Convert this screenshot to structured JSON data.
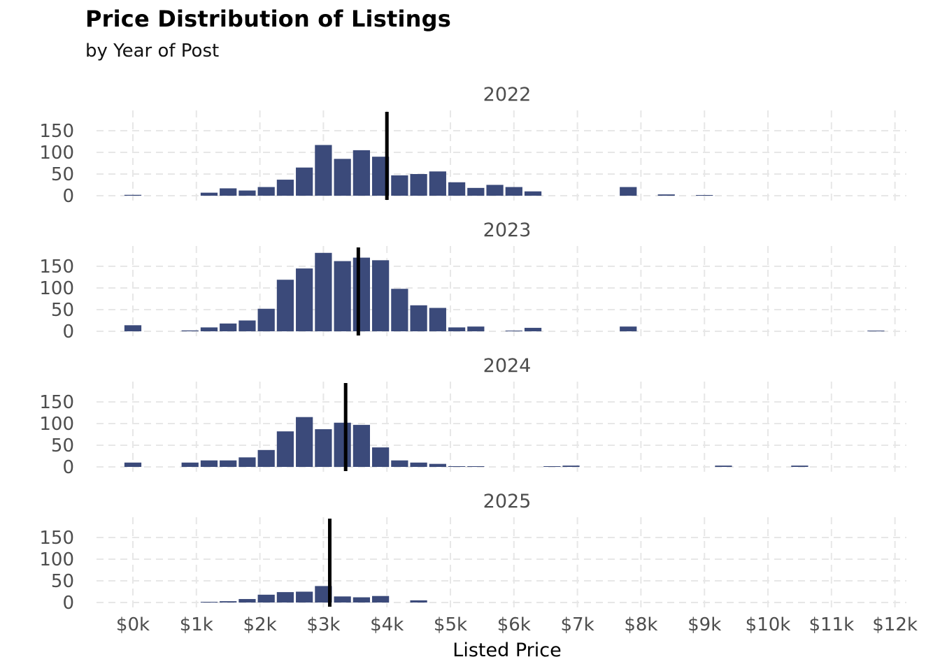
{
  "chart_data": {
    "type": "bar",
    "title": "Price Distribution of Listings",
    "subtitle": "by Year of Post",
    "xlabel": "Listed Price",
    "ylabel": "",
    "x_ticks": [
      "$0k",
      "$1k",
      "$2k",
      "$3k",
      "$4k",
      "$5k",
      "$6k",
      "$7k",
      "$8k",
      "$9k",
      "$10k",
      "$11k",
      "$12k"
    ],
    "y_ticks": [
      "0",
      "50",
      "100",
      "150"
    ],
    "grid": true,
    "facets": [
      {
        "label": "2022",
        "median_line": 4000,
        "bins": [
          {
            "x": 0,
            "count": 2
          },
          {
            "x": 1200,
            "count": 7
          },
          {
            "x": 1500,
            "count": 17
          },
          {
            "x": 1800,
            "count": 12
          },
          {
            "x": 2100,
            "count": 20
          },
          {
            "x": 2400,
            "count": 37
          },
          {
            "x": 2700,
            "count": 65
          },
          {
            "x": 3000,
            "count": 117
          },
          {
            "x": 3300,
            "count": 85
          },
          {
            "x": 3600,
            "count": 105
          },
          {
            "x": 3900,
            "count": 90
          },
          {
            "x": 4200,
            "count": 47
          },
          {
            "x": 4500,
            "count": 50
          },
          {
            "x": 4800,
            "count": 56
          },
          {
            "x": 5100,
            "count": 31
          },
          {
            "x": 5400,
            "count": 18
          },
          {
            "x": 5700,
            "count": 25
          },
          {
            "x": 6000,
            "count": 20
          },
          {
            "x": 6300,
            "count": 10
          },
          {
            "x": 7800,
            "count": 20
          },
          {
            "x": 8400,
            "count": 3
          },
          {
            "x": 9000,
            "count": 1
          }
        ]
      },
      {
        "label": "2023",
        "median_line": 3550,
        "bins": [
          {
            "x": 0,
            "count": 14
          },
          {
            "x": 900,
            "count": 2
          },
          {
            "x": 1200,
            "count": 9
          },
          {
            "x": 1500,
            "count": 18
          },
          {
            "x": 1800,
            "count": 25
          },
          {
            "x": 2100,
            "count": 52
          },
          {
            "x": 2400,
            "count": 119
          },
          {
            "x": 2700,
            "count": 145
          },
          {
            "x": 3000,
            "count": 181
          },
          {
            "x": 3300,
            "count": 162
          },
          {
            "x": 3600,
            "count": 170
          },
          {
            "x": 3900,
            "count": 164
          },
          {
            "x": 4200,
            "count": 98
          },
          {
            "x": 4500,
            "count": 60
          },
          {
            "x": 4800,
            "count": 54
          },
          {
            "x": 5100,
            "count": 9
          },
          {
            "x": 5400,
            "count": 11
          },
          {
            "x": 6000,
            "count": 1
          },
          {
            "x": 6300,
            "count": 8
          },
          {
            "x": 7800,
            "count": 11
          },
          {
            "x": 11700,
            "count": 1
          }
        ]
      },
      {
        "label": "2024",
        "median_line": 3350,
        "bins": [
          {
            "x": 0,
            "count": 10
          },
          {
            "x": 900,
            "count": 10
          },
          {
            "x": 1200,
            "count": 15
          },
          {
            "x": 1500,
            "count": 15
          },
          {
            "x": 1800,
            "count": 22
          },
          {
            "x": 2100,
            "count": 39
          },
          {
            "x": 2400,
            "count": 82
          },
          {
            "x": 2700,
            "count": 115
          },
          {
            "x": 3000,
            "count": 87
          },
          {
            "x": 3300,
            "count": 102
          },
          {
            "x": 3600,
            "count": 97
          },
          {
            "x": 3900,
            "count": 45
          },
          {
            "x": 4200,
            "count": 15
          },
          {
            "x": 4500,
            "count": 10
          },
          {
            "x": 4800,
            "count": 7
          },
          {
            "x": 5100,
            "count": 1
          },
          {
            "x": 5400,
            "count": 1
          },
          {
            "x": 6600,
            "count": 1
          },
          {
            "x": 6900,
            "count": 3
          },
          {
            "x": 9300,
            "count": 3
          },
          {
            "x": 10500,
            "count": 3
          }
        ]
      },
      {
        "label": "2025",
        "median_line": 3100,
        "bins": [
          {
            "x": 1200,
            "count": 1
          },
          {
            "x": 1500,
            "count": 3
          },
          {
            "x": 1800,
            "count": 8
          },
          {
            "x": 2100,
            "count": 18
          },
          {
            "x": 2400,
            "count": 24
          },
          {
            "x": 2700,
            "count": 25
          },
          {
            "x": 3000,
            "count": 38
          },
          {
            "x": 3300,
            "count": 14
          },
          {
            "x": 3600,
            "count": 12
          },
          {
            "x": 3900,
            "count": 15
          },
          {
            "x": 4500,
            "count": 5
          }
        ]
      }
    ],
    "colors": {
      "bar": "#3b4a7a",
      "median_line": "#000000",
      "grid": "#e7e7e7"
    }
  }
}
